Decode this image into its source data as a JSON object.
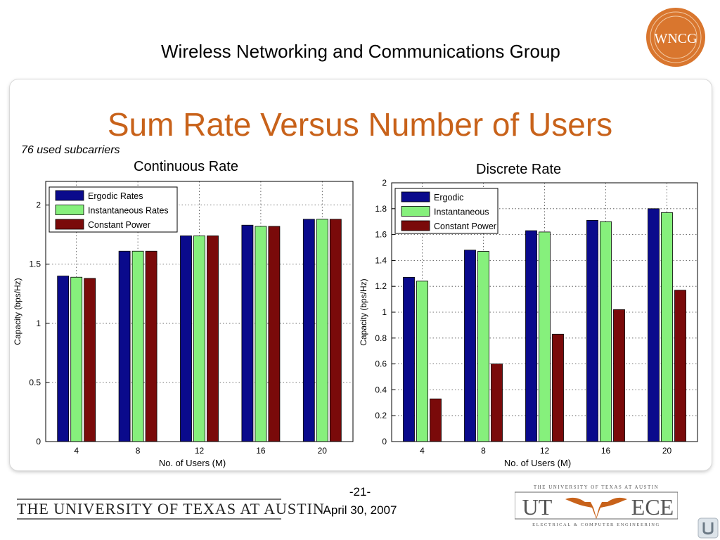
{
  "header": {
    "org_title": "Wireless Networking and Communications Group",
    "logo_text": "WNCG"
  },
  "slide": {
    "title": "Sum Rate Versus Number of Users",
    "note": "76 used subcarriers"
  },
  "colors": {
    "title": "#c8621a",
    "ergodic": "#0a0a8c",
    "instantaneous": "#86f07c",
    "constant": "#7a0a0a"
  },
  "chart_data": [
    {
      "type": "bar",
      "caption": "Continuous Rate",
      "categories": [
        "4",
        "8",
        "12",
        "16",
        "20"
      ],
      "series": [
        {
          "name": "Ergodic Rates",
          "values": [
            1.4,
            1.61,
            1.74,
            1.83,
            1.88
          ]
        },
        {
          "name": "Instantaneous Rates",
          "values": [
            1.39,
            1.61,
            1.74,
            1.82,
            1.88
          ]
        },
        {
          "name": "Constant Power",
          "values": [
            1.38,
            1.61,
            1.74,
            1.82,
            1.88
          ]
        }
      ],
      "xlabel": "No. of Users (M)",
      "ylabel": "Capacity (bps/Hz)",
      "ylim": [
        0,
        2.2
      ],
      "yticks": [
        0,
        0.5,
        1,
        1.5,
        2
      ],
      "ytick_labels": [
        "0",
        "0.5",
        "1",
        "1.5",
        "2"
      ],
      "grid": true,
      "legend": "top-left"
    },
    {
      "type": "bar",
      "caption": "Discrete Rate",
      "categories": [
        "4",
        "8",
        "12",
        "16",
        "20"
      ],
      "series": [
        {
          "name": "Ergodic",
          "values": [
            1.27,
            1.48,
            1.63,
            1.71,
            1.8
          ]
        },
        {
          "name": "Instantaneous",
          "values": [
            1.24,
            1.47,
            1.62,
            1.7,
            1.77
          ]
        },
        {
          "name": "Constant Power",
          "values": [
            0.33,
            0.6,
            0.83,
            1.02,
            1.17
          ]
        }
      ],
      "xlabel": "No. of Users (M)",
      "ylabel": "Capacity (bps/Hz)",
      "ylim": [
        0,
        2
      ],
      "yticks": [
        0,
        0.2,
        0.4,
        0.6,
        0.8,
        1,
        1.2,
        1.4,
        1.6,
        1.8,
        2
      ],
      "ytick_labels": [
        "0",
        "0.2",
        "0.4",
        "0.6",
        "0.8",
        "1",
        "1.2",
        "1.4",
        "1.6",
        "1.8",
        "2"
      ],
      "grid": true,
      "legend": "top-left"
    }
  ],
  "footer": {
    "university": "THE UNIVERSITY OF TEXAS AT AUSTIN",
    "page": "-21-",
    "date": "April 30, 2007",
    "logo_top": "THE UNIVERSITY OF TEXAS AT AUSTIN",
    "logo_left": "UT",
    "logo_right": "ECE",
    "logo_bottom": "ELECTRICAL & COMPUTER ENGINEERING"
  }
}
